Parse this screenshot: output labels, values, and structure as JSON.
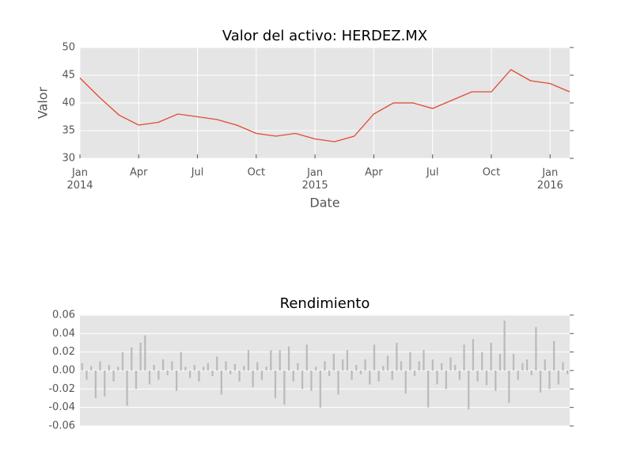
{
  "chart_data": [
    {
      "type": "line",
      "title": "Valor del activo: HERDEZ.MX",
      "xlabel": "Date",
      "ylabel": "Valor",
      "x": [
        "2014-01",
        "2014-02",
        "2014-03",
        "2014-04",
        "2014-05",
        "2014-06",
        "2014-07",
        "2014-08",
        "2014-09",
        "2014-10",
        "2014-11",
        "2014-12",
        "2015-01",
        "2015-02",
        "2015-03",
        "2015-04",
        "2015-05",
        "2015-06",
        "2015-07",
        "2015-08",
        "2015-09",
        "2015-10",
        "2015-11",
        "2015-12",
        "2016-01",
        "2016-02"
      ],
      "values": [
        44.5,
        41,
        37.8,
        36,
        36.5,
        38,
        37.5,
        37,
        36,
        34.5,
        34,
        34.5,
        33.5,
        33,
        34,
        38,
        40,
        40,
        39,
        40.5,
        42,
        42,
        46,
        44,
        43.5,
        42
      ],
      "color": "#e24a33",
      "xlim": [
        "2014-01",
        "2016-02"
      ],
      "xticks": [
        {
          "value": "2014-01",
          "label": "Jan\n2014"
        },
        {
          "value": "2014-04",
          "label": "Apr"
        },
        {
          "value": "2014-07",
          "label": "Jul"
        },
        {
          "value": "2014-10",
          "label": "Oct"
        },
        {
          "value": "2015-01",
          "label": "Jan\n2015"
        },
        {
          "value": "2015-04",
          "label": "Apr"
        },
        {
          "value": "2015-07",
          "label": "Jul"
        },
        {
          "value": "2015-10",
          "label": "Oct"
        },
        {
          "value": "2016-01",
          "label": "Jan\n2016"
        }
      ],
      "ylim": [
        30,
        50
      ],
      "yticks": [
        30,
        35,
        40,
        45,
        50
      ],
      "grid": true
    },
    {
      "type": "bar",
      "title": "Rendimiento",
      "values": [
        0.008,
        -0.01,
        0.005,
        -0.03,
        0.01,
        -0.028,
        0.006,
        -0.012,
        0.004,
        0.02,
        -0.038,
        0.025,
        -0.02,
        0.03,
        0.038,
        -0.015,
        0.006,
        -0.01,
        0.012,
        -0.005,
        0.01,
        -0.022,
        0.02,
        0.004,
        -0.008,
        0.006,
        -0.012,
        0.004,
        0.008,
        -0.006,
        0.015,
        -0.026,
        0.01,
        -0.004,
        0.007,
        -0.012,
        0.005,
        0.022,
        -0.018,
        0.009,
        -0.01,
        0.004,
        0.022,
        -0.03,
        0.022,
        -0.037,
        0.026,
        -0.012,
        0.008,
        -0.02,
        0.028,
        -0.022,
        0.004,
        -0.04,
        0.01,
        -0.006,
        0.018,
        -0.026,
        0.012,
        0.022,
        -0.01,
        0.006,
        -0.004,
        0.012,
        -0.015,
        0.028,
        -0.012,
        0.005,
        0.016,
        -0.01,
        0.03,
        0.01,
        -0.025,
        0.02,
        -0.006,
        0.01,
        0.022,
        -0.04,
        0.012,
        -0.015,
        0.008,
        -0.02,
        0.014,
        0.006,
        -0.01,
        0.028,
        -0.042,
        0.034,
        -0.012,
        0.02,
        -0.016,
        0.03,
        -0.022,
        0.018,
        0.054,
        -0.035,
        0.018,
        -0.01,
        0.008,
        0.012,
        -0.005,
        0.047,
        -0.024,
        0.012,
        -0.02,
        0.032,
        -0.015,
        0.009,
        -0.004
      ],
      "color": "#bbbbbb",
      "ylim": [
        -0.06,
        0.06
      ],
      "yticks": [
        -0.06,
        -0.04,
        -0.02,
        {
          "value": 0,
          "label": "0.00"
        },
        0.02,
        0.04,
        0.06
      ],
      "grid": true
    }
  ]
}
